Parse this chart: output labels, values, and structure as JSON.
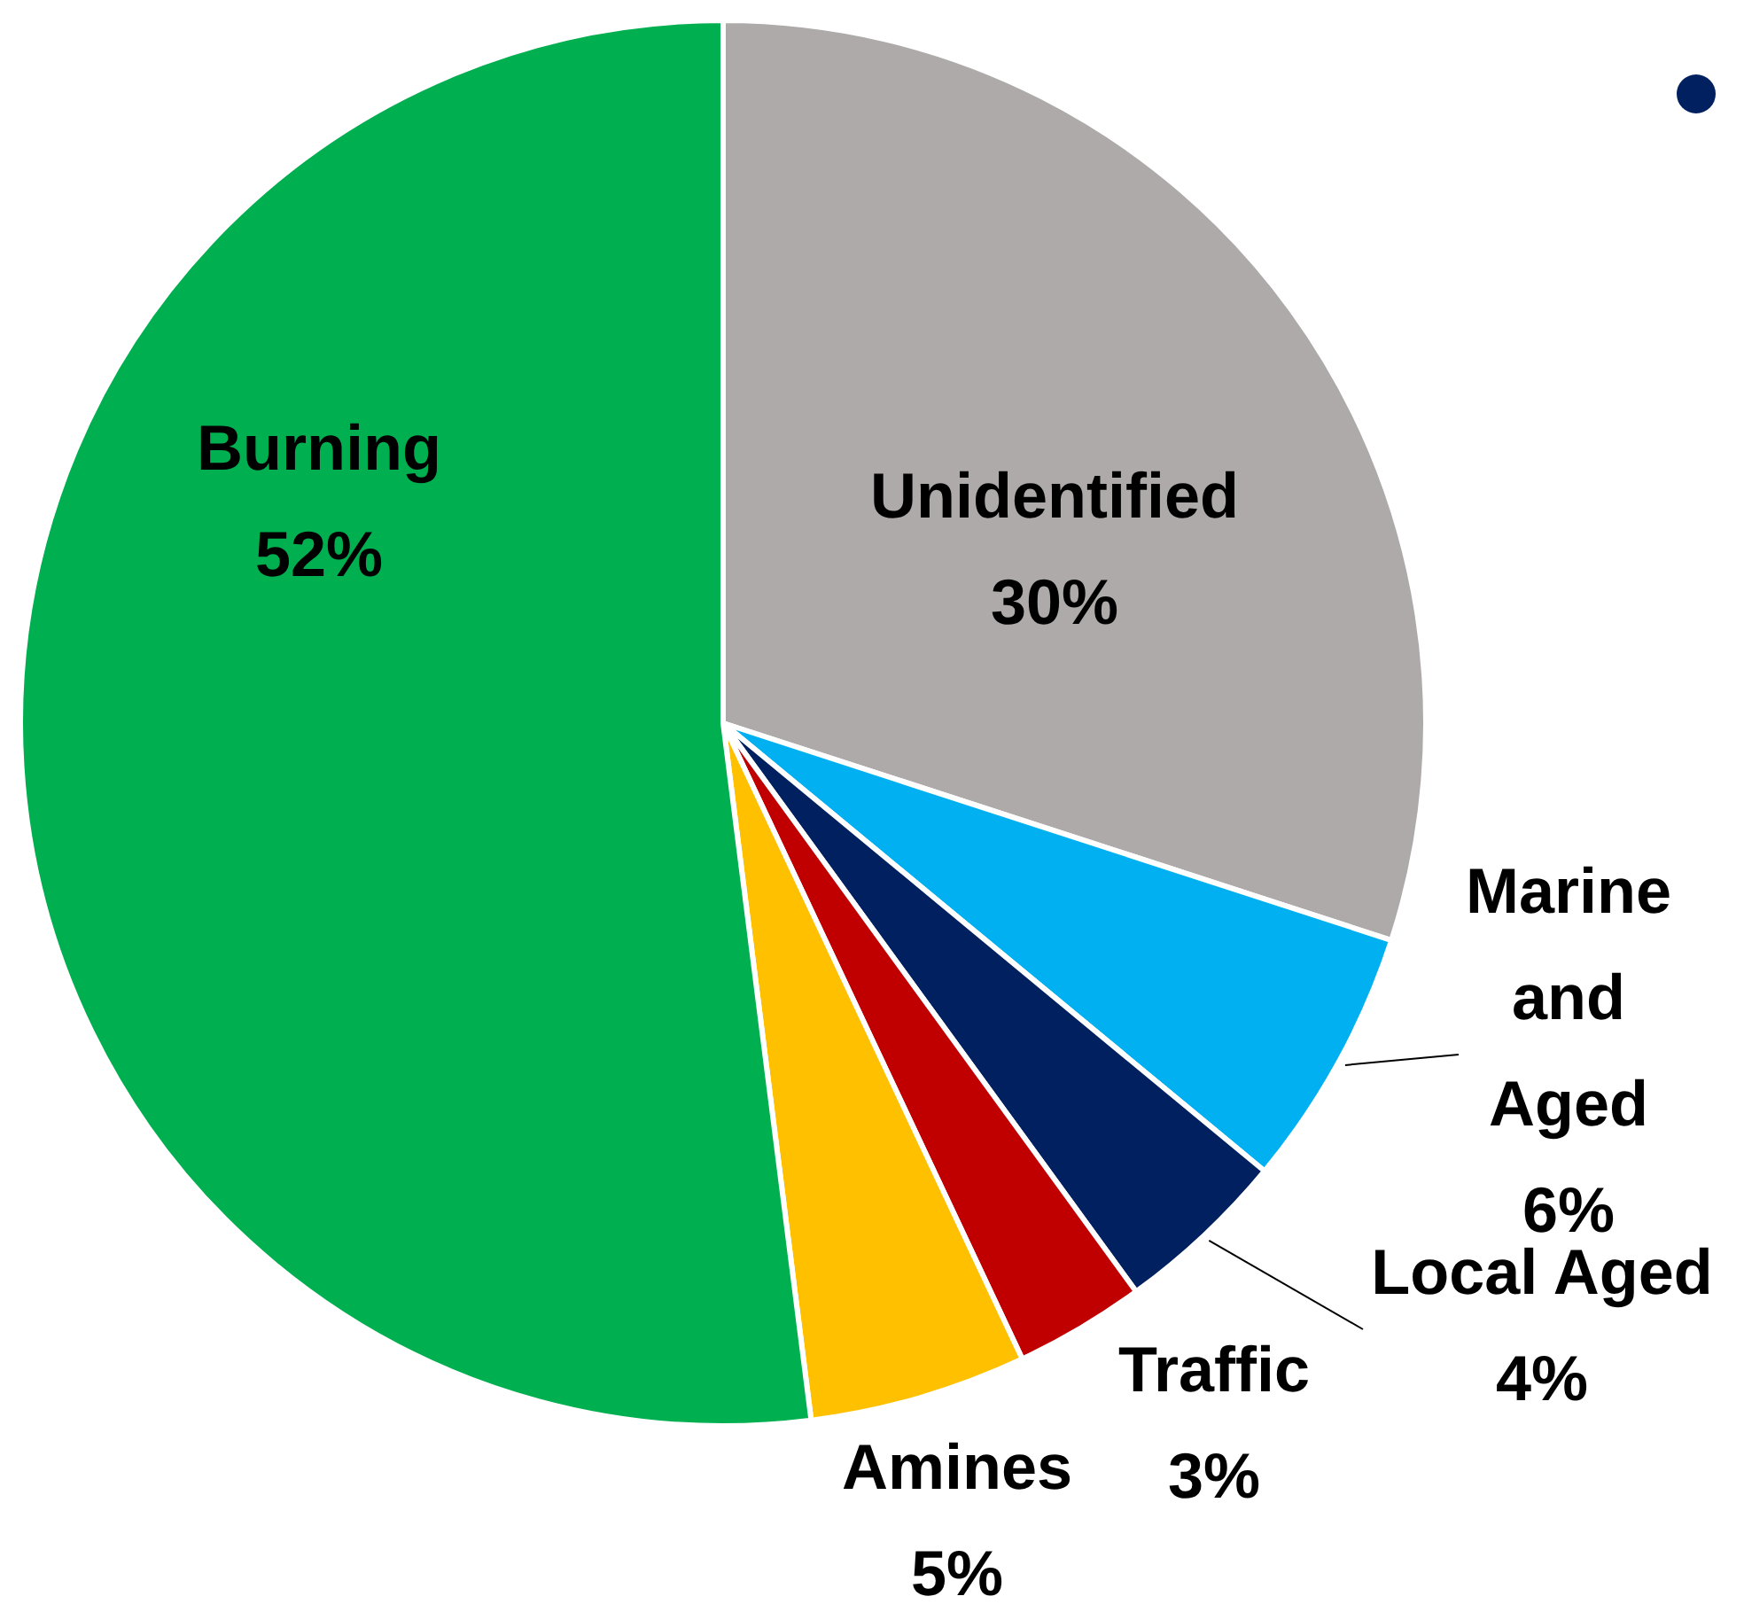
{
  "chart_data": {
    "type": "pie",
    "categories": [
      "Unidentified",
      "Marine and Aged",
      "Local Aged",
      "Traffic",
      "Amines",
      "Burning"
    ],
    "values": [
      30,
      6,
      4,
      3,
      5,
      52
    ],
    "colors": [
      "#aeaaaa",
      "#00b0f0",
      "#002060",
      "#c00000",
      "#ffc000",
      "#00b050"
    ],
    "value_labels": [
      "30%",
      "6%",
      "4%",
      "3%",
      "5%",
      "52%"
    ],
    "legend": false
  }
}
